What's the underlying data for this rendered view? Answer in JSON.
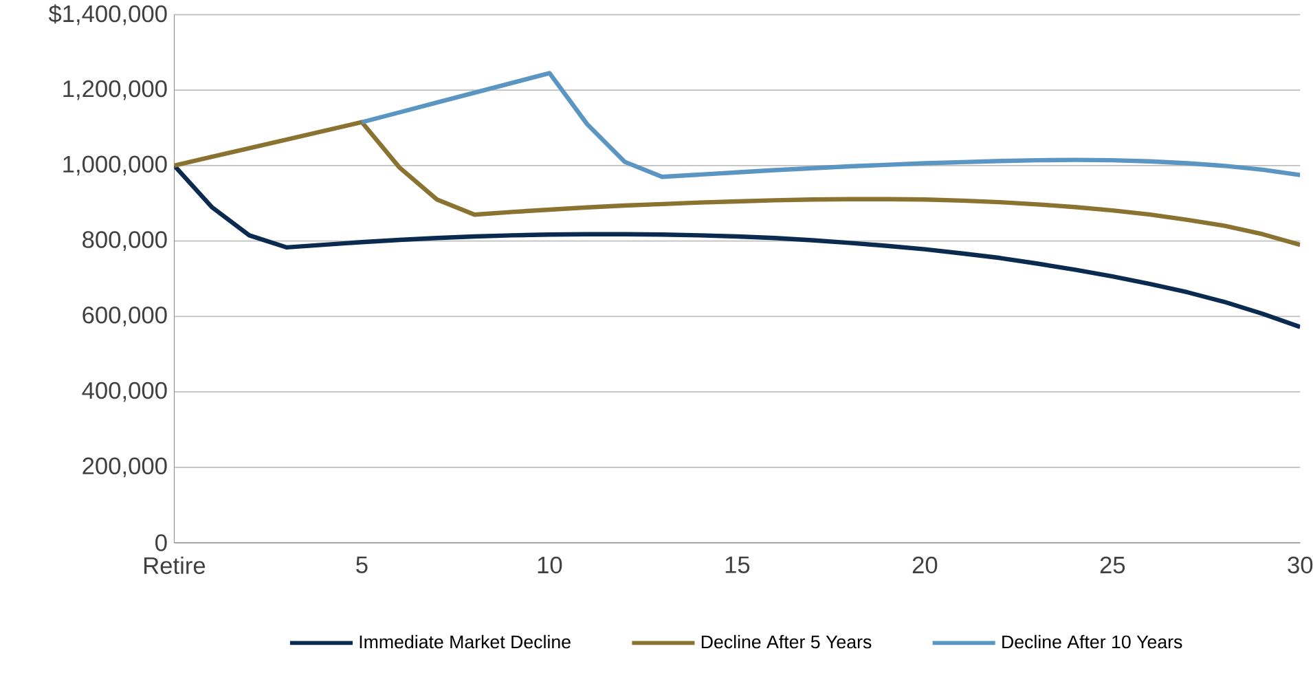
{
  "chart_data": {
    "type": "line",
    "xlim": [
      0,
      30
    ],
    "ylim": [
      0,
      1400000
    ],
    "xticks": [
      {
        "value": 0,
        "label": "Retire"
      },
      5,
      10,
      15,
      20,
      25,
      30
    ],
    "yticks": [
      0,
      {
        "value": 200000,
        "label": "200,000"
      },
      {
        "value": 400000,
        "label": "400,000"
      },
      {
        "value": 600000,
        "label": "600,000"
      },
      {
        "value": 800000,
        "label": "800,000"
      },
      {
        "value": 1000000,
        "label": "1,000,000"
      },
      {
        "value": 1200000,
        "label": "1,200,000"
      },
      {
        "value": 1400000,
        "label": "$1,400,000"
      }
    ],
    "x": [
      0,
      1,
      2,
      3,
      4,
      5,
      6,
      7,
      8,
      9,
      10,
      11,
      12,
      13,
      14,
      15,
      16,
      17,
      18,
      19,
      20,
      21,
      22,
      23,
      24,
      25,
      26,
      27,
      28,
      29,
      30
    ],
    "grid": "y",
    "legend": "bottom",
    "marker": "none",
    "line_style": "solid",
    "series": [
      {
        "name": "Immediate Market Decline",
        "color": "#0b2a4f",
        "values": [
          1000000,
          890000,
          815000,
          783000,
          790000,
          797000,
          803000,
          808000,
          812000,
          815000,
          817000,
          818000,
          818000,
          817000,
          815000,
          812000,
          808000,
          802000,
          795000,
          787000,
          778000,
          767000,
          755000,
          740000,
          724000,
          706000,
          686000,
          664000,
          638000,
          607000,
          572000
        ]
      },
      {
        "name": "Decline After 5 Years",
        "color": "#8a7330",
        "values": [
          1000000,
          1023000,
          1046000,
          1069000,
          1092000,
          1115000,
          995000,
          910000,
          870000,
          877000,
          883000,
          889000,
          894000,
          898000,
          902000,
          905000,
          908000,
          910000,
          911000,
          911000,
          910000,
          907000,
          903000,
          897000,
          890000,
          881000,
          870000,
          856000,
          840000,
          818000,
          790000
        ]
      },
      {
        "name": "Decline After 10 Years",
        "color": "#5b96c2",
        "values": [
          null,
          null,
          null,
          null,
          null,
          1115000,
          1141000,
          1167000,
          1193000,
          1219000,
          1245000,
          1110000,
          1010000,
          970000,
          976000,
          982000,
          988000,
          993000,
          998000,
          1002000,
          1006000,
          1009000,
          1012000,
          1014000,
          1015000,
          1014000,
          1011000,
          1006000,
          999000,
          989000,
          975000
        ]
      }
    ]
  }
}
